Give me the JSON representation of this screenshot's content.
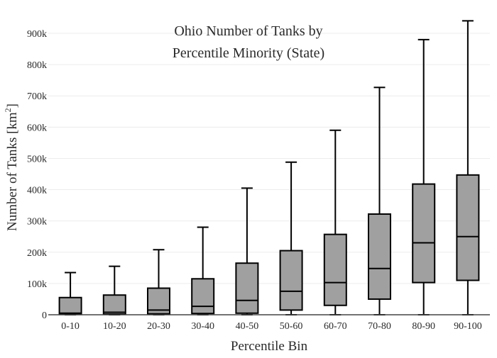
{
  "chart_data": {
    "type": "box",
    "title_lines": [
      "Ohio Number of Tanks by",
      "Percentile Minority (State)"
    ],
    "xlabel": "Percentile Bin",
    "ylabel_main": "Number of Tanks  [km",
    "ylabel_sup": "2",
    "ylabel_close": "]",
    "ylim": [
      0,
      950000
    ],
    "yticks": [
      0,
      100000,
      200000,
      300000,
      400000,
      500000,
      600000,
      700000,
      800000,
      900000
    ],
    "ytick_labels": [
      "0",
      "100k",
      "200k",
      "300k",
      "400k",
      "500k",
      "600k",
      "700k",
      "800k",
      "900k"
    ],
    "grid": true,
    "box_color": "#a0a0a0",
    "categories": [
      "0-10",
      "10-20",
      "20-30",
      "30-40",
      "40-50",
      "50-60",
      "60-70",
      "70-80",
      "80-90",
      "90-100"
    ],
    "boxes": [
      {
        "min": 0,
        "q1": 1000,
        "median": 5000,
        "q3": 55000,
        "max": 135000
      },
      {
        "min": 0,
        "q1": 2000,
        "median": 8000,
        "q3": 63000,
        "max": 155000
      },
      {
        "min": 0,
        "q1": 3000,
        "median": 15000,
        "q3": 85000,
        "max": 208000
      },
      {
        "min": 0,
        "q1": 4000,
        "median": 27000,
        "q3": 115000,
        "max": 280000
      },
      {
        "min": 0,
        "q1": 5000,
        "median": 46000,
        "q3": 165000,
        "max": 405000
      },
      {
        "min": 0,
        "q1": 15000,
        "median": 75000,
        "q3": 205000,
        "max": 488000
      },
      {
        "min": 0,
        "q1": 30000,
        "median": 103000,
        "q3": 257000,
        "max": 590000
      },
      {
        "min": 0,
        "q1": 50000,
        "median": 148000,
        "q3": 322000,
        "max": 727000
      },
      {
        "min": 0,
        "q1": 103000,
        "median": 230000,
        "q3": 418000,
        "max": 880000
      },
      {
        "min": 0,
        "q1": 110000,
        "median": 250000,
        "q3": 447000,
        "max": 940000
      }
    ]
  }
}
